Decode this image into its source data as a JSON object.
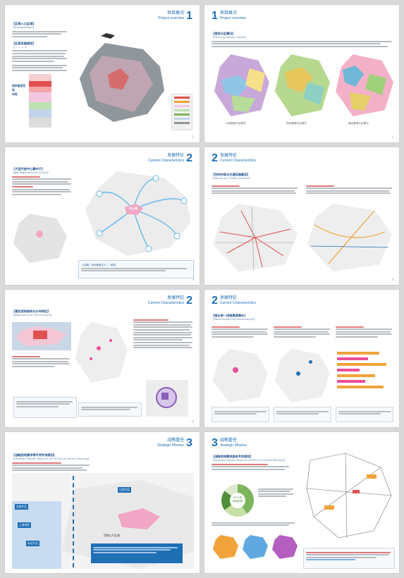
{
  "pages": [
    {
      "id": 1,
      "num": "1",
      "title_cn": "项目概况",
      "title_en": "Project overview",
      "sections": [
        {
          "title": "【区域入口区域】",
          "sub": "【Transportation】"
        },
        {
          "title": "【区域发展规划】",
          "sub": "【 ————】"
        }
      ],
      "map_label": "城市建设用地\n布局",
      "page_no": "1"
    },
    {
      "id": 2,
      "num": "1",
      "title_cn": "项目概况",
      "title_en": "Project overview",
      "sections": [
        {
          "title": "【规划分区情况】",
          "sub": "【Planning Division Status】"
        }
      ],
      "captions": [
        "行政管理分区情况",
        "规划管理分区情况",
        "建设管理分区情况"
      ],
      "page_no": "2"
    },
    {
      "id": 3,
      "num": "2",
      "title_cn": "发展特征",
      "title_en": "Current Characteristics",
      "sections": [
        {
          "title": "【大型开放中心集中于】",
          "sub": "【Big Regional-Level Center】"
        }
      ],
      "center_label": "中心城",
      "footnote": "【注释】 本年度首位以“—”体现。",
      "page_no": "3"
    },
    {
      "id": 4,
      "num": "2",
      "title_cn": "发展特征",
      "title_en": "Current Characteristics",
      "sections": [
        {
          "title": "【空间布局与交通设施建设】",
          "sub": "【Spatial and Traffic Systems】"
        }
      ],
      "page_no": "4"
    },
    {
      "id": 5,
      "num": "2",
      "title_cn": "发展特征",
      "title_en": "Current Characteristics",
      "sections": [
        {
          "title": "【建设用地结构与分布特征】",
          "sub": "【Regional Land Use Structure】"
        }
      ],
      "page_no": "5"
    },
    {
      "id": 6,
      "num": "2",
      "title_cn": "发展特征",
      "title_en": "Current Characteristics",
      "sections": [
        {
          "title": "【商业单一用途高速增长】",
          "sub": "【Rapid Single-Use Development】"
        }
      ],
      "page_no": "6"
    },
    {
      "id": 7,
      "num": "3",
      "title_cn": "战略重任",
      "title_en": "Strategic Mission",
      "sections": [
        {
          "title": "【战略用地需求等专项专项规划】",
          "sub": "【Strategic Mission Requires the Re-Use of Central Planning】"
        }
      ],
      "labels": [
        "总体片区",
        "上海市区",
        "江苏片区",
        "浙北片区",
        "西南九片区域"
      ],
      "page_no": "7"
    },
    {
      "id": 8,
      "num": "3",
      "title_cn": "战略重任",
      "title_en": "Strategic Mission",
      "sections": [
        {
          "title": "【战略用地需求服务专项规划】",
          "sub": "【Strategic Mission Requires the Plan of Central Planning】"
        }
      ],
      "donut_label": "2011年\n用地结构",
      "page_no": "8"
    }
  ],
  "colors": {
    "accent": "#1f6fb5",
    "pink": "#e94f9a",
    "orange": "#f0a33a",
    "purple": "#8a5fb8",
    "green": "#7cb55c"
  }
}
